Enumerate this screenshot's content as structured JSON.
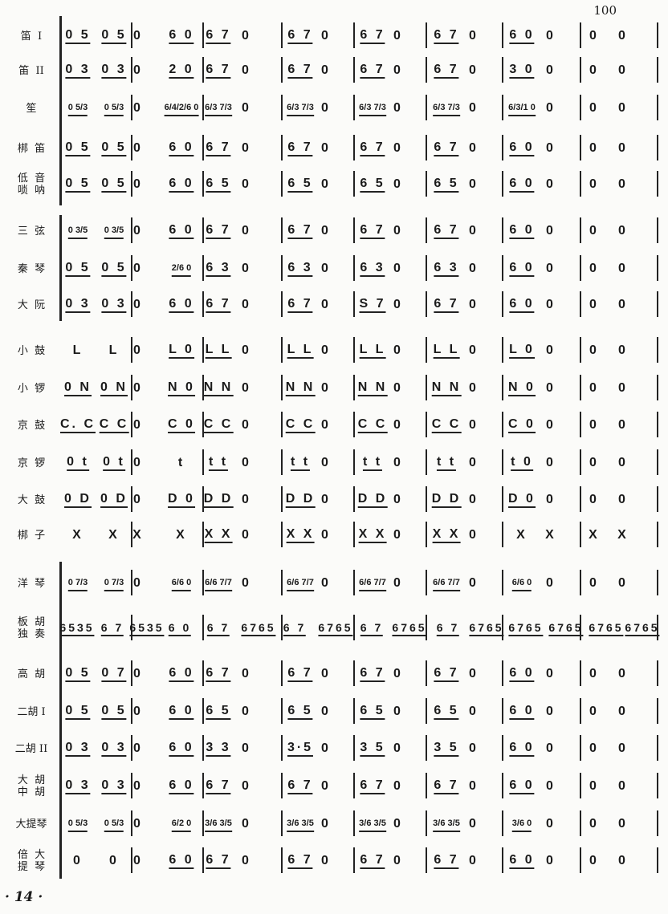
{
  "page_number": "100",
  "folio": "· 14 ·",
  "rows": [
    {
      "label": "笛  I",
      "tokens": [
        "0 5",
        "0 5",
        "0",
        "6 0",
        "6 7",
        "0",
        "6 7",
        "0",
        "6 7",
        "0",
        "6 7",
        "0",
        "6 0",
        "0",
        "0",
        "0"
      ]
    },
    {
      "label": "笛  II",
      "tokens": [
        "0 3",
        "0 3",
        "0",
        "2 0",
        "6 7",
        "0",
        "6 7",
        "0",
        "6 7",
        "0",
        "6 7",
        "0",
        "3 0",
        "0",
        "0",
        "0"
      ]
    },
    {
      "label": "笙",
      "tokens": [
        "0 5/3",
        "0 5/3",
        "0",
        "6/4/2/6 0",
        "6/3 7/3",
        "0",
        "6/3 7/3",
        "0",
        "6/3 7/3",
        "0",
        "6/3 7/3",
        "0",
        "6/3/1 0",
        "0",
        "0",
        "0"
      ]
    },
    {
      "label": "梆  笛",
      "tokens": [
        "0 5",
        "0 5",
        "0",
        "6 0",
        "6 7",
        "0",
        "6 7",
        "0",
        "6 7",
        "0",
        "6 7",
        "0",
        "6 0",
        "0",
        "0",
        "0"
      ]
    },
    {
      "label": "低  音\n唢  呐",
      "tokens": [
        "0 5",
        "0 5",
        "0",
        "6 0",
        "6 5",
        "0",
        "6 5",
        "0",
        "6 5",
        "0",
        "6 5",
        "0",
        "6 0",
        "0",
        "0",
        "0"
      ]
    },
    {
      "label": "三  弦",
      "tokens": [
        "0 3/5",
        "0 3/5",
        "0",
        "6 0",
        "6 7",
        "0",
        "6 7",
        "0",
        "6 7",
        "0",
        "6 7",
        "0",
        "6 0",
        "0",
        "0",
        "0"
      ]
    },
    {
      "label": "秦  琴",
      "tokens": [
        "0 5",
        "0 5",
        "0",
        "2/6 0",
        "6 3",
        "0",
        "6 3",
        "0",
        "6 3",
        "0",
        "6 3",
        "0",
        "6 0",
        "0",
        "0",
        "0"
      ]
    },
    {
      "label": "大  阮",
      "tokens": [
        "0 3",
        "0 3",
        "0",
        "6 0",
        "6 7",
        "0",
        "6 7",
        "0",
        "S 7",
        "0",
        "6 7",
        "0",
        "6 0",
        "0",
        "0",
        "0"
      ]
    },
    {
      "label": "小  鼓",
      "tokens": [
        "L",
        "L",
        "0",
        "L 0",
        "L L",
        "0",
        "L L",
        "0",
        "L L",
        "0",
        "L L",
        "0",
        "L 0",
        "0",
        "0",
        "0"
      ]
    },
    {
      "label": "小  锣",
      "tokens": [
        "0 N",
        "0 N",
        "0",
        "N 0",
        "N N",
        "0",
        "N N",
        "0",
        "N N",
        "0",
        "N N",
        "0",
        "N 0",
        "0",
        "0",
        "0"
      ]
    },
    {
      "label": "京  鼓",
      "tokens": [
        "C. C",
        "C C",
        "0",
        "C 0",
        "C C",
        "0",
        "C C",
        "0",
        "C C",
        "0",
        "C C",
        "0",
        "C 0",
        "0",
        "0",
        "0"
      ]
    },
    {
      "label": "京  锣",
      "tokens": [
        "0 t",
        "0 t",
        "0",
        "t",
        "t t",
        "0",
        "t t",
        "0",
        "t t",
        "0",
        "t t",
        "0",
        "t 0",
        "0",
        "0",
        "0"
      ]
    },
    {
      "label": "大  鼓",
      "tokens": [
        "0 D",
        "0 D",
        "0",
        "D 0",
        "D D",
        "0",
        "D D",
        "0",
        "D D",
        "0",
        "D D",
        "0",
        "D 0",
        "0",
        "0",
        "0"
      ]
    },
    {
      "label": "梆  子",
      "tokens": [
        "X",
        "X",
        "X",
        "X",
        "X X",
        "0",
        "X X",
        "0",
        "X X",
        "0",
        "X X",
        "0",
        "X",
        "X",
        "X",
        "X"
      ]
    },
    {
      "label": "洋  琴",
      "tokens": [
        "0 7/3",
        "0 7/3",
        "0",
        "6/6 0",
        "6/6 7/7",
        "0",
        "6/6 7/7",
        "0",
        "6/6 7/7",
        "0",
        "6/6 7/7",
        "0",
        "6/6 0",
        "0",
        "0",
        "0"
      ]
    },
    {
      "label": "板  胡\n独  奏",
      "tokens": [
        "6535",
        "6 7",
        "6535",
        "6 0",
        "6 7",
        "6765",
        "6 7",
        "6765",
        "6 7",
        "6765",
        "6 7",
        "6765",
        "6765",
        "6765",
        "6765",
        "6765"
      ]
    },
    {
      "label": "高  胡",
      "tokens": [
        "0 5",
        "0 7",
        "0",
        "6 0",
        "6 7",
        "0",
        "6 7",
        "0",
        "6 7",
        "0",
        "6 7",
        "0",
        "6 0",
        "0",
        "0",
        "0"
      ]
    },
    {
      "label": "二胡 I",
      "tokens": [
        "0 5",
        "0 5",
        "0",
        "6 0",
        "6 5",
        "0",
        "6 5",
        "0",
        "6 5",
        "0",
        "6 5",
        "0",
        "6 0",
        "0",
        "0",
        "0"
      ]
    },
    {
      "label": "二胡 II",
      "tokens": [
        "0 3",
        "0 3",
        "0",
        "6 0",
        "3 3",
        "0",
        "3·5",
        "0",
        "3 5",
        "0",
        "3 5",
        "0",
        "6 0",
        "0",
        "0",
        "0"
      ]
    },
    {
      "label": "大  胡\n中  胡",
      "tokens": [
        "0 3",
        "0 3",
        "0",
        "6 0",
        "6 7",
        "0",
        "6 7",
        "0",
        "6 7",
        "0",
        "6 7",
        "0",
        "6 0",
        "0",
        "0",
        "0"
      ]
    },
    {
      "label": "大提琴",
      "tokens": [
        "0 5/3",
        "0 5/3",
        "0",
        "6/2 0",
        "3/6 3/5",
        "0",
        "3/6 3/5",
        "0",
        "3/6 3/5",
        "0",
        "3/6 3/5",
        "0",
        "3/6 0",
        "0",
        "0",
        "0"
      ]
    },
    {
      "label": "倍  大\n提  琴",
      "tokens": [
        "0",
        "0",
        "0",
        "6 0",
        "6 7",
        "0",
        "6 7",
        "0",
        "6 7",
        "0",
        "6 7",
        "0",
        "6 0",
        "0",
        "0",
        "0"
      ]
    }
  ]
}
